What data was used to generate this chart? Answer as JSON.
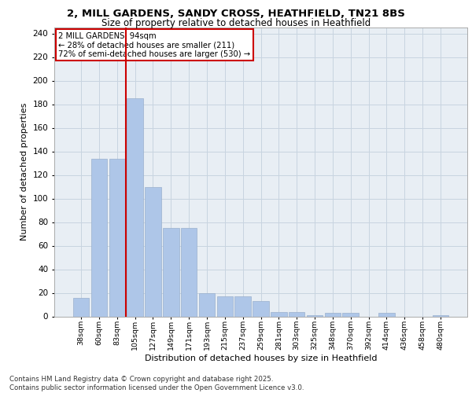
{
  "title_line1": "2, MILL GARDENS, SANDY CROSS, HEATHFIELD, TN21 8BS",
  "title_line2": "Size of property relative to detached houses in Heathfield",
  "xlabel": "Distribution of detached houses by size in Heathfield",
  "ylabel": "Number of detached properties",
  "categories": [
    "38sqm",
    "60sqm",
    "83sqm",
    "105sqm",
    "127sqm",
    "149sqm",
    "171sqm",
    "193sqm",
    "215sqm",
    "237sqm",
    "259sqm",
    "281sqm",
    "303sqm",
    "325sqm",
    "348sqm",
    "370sqm",
    "392sqm",
    "414sqm",
    "436sqm",
    "458sqm",
    "480sqm"
  ],
  "values": [
    16,
    134,
    134,
    185,
    110,
    75,
    75,
    20,
    17,
    17,
    13,
    4,
    4,
    1,
    3,
    3,
    0,
    3,
    0,
    0,
    1
  ],
  "bar_color": "#aec6e8",
  "bar_edgecolor": "#9ab0cc",
  "grid_color": "#c8d4e0",
  "background_color": "#e8eef4",
  "vline_x": 2.5,
  "vline_color": "#cc0000",
  "annotation_text": "2 MILL GARDENS: 94sqm\n← 28% of detached houses are smaller (211)\n72% of semi-detached houses are larger (530) →",
  "annotation_box_color": "#cc0000",
  "footer_text": "Contains HM Land Registry data © Crown copyright and database right 2025.\nContains public sector information licensed under the Open Government Licence v3.0.",
  "ylim": [
    0,
    245
  ],
  "yticks": [
    0,
    20,
    40,
    60,
    80,
    100,
    120,
    140,
    160,
    180,
    200,
    220,
    240
  ]
}
